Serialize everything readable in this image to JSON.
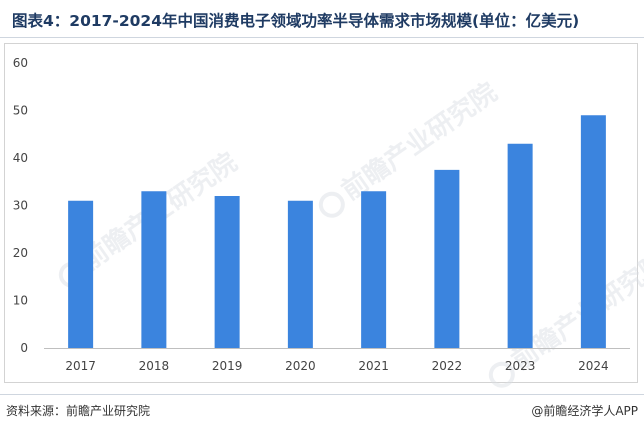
{
  "header": {
    "title": "图表4：2017-2024年中国消费电子领域功率半导体需求市场规模(单位：亿美元)"
  },
  "footer": {
    "source": "资料来源：前瞻产业研究院",
    "credit": "@前瞻经济学人APP"
  },
  "watermark": {
    "text": "前瞻产业研究院"
  },
  "colors": {
    "bar": "#3b84de",
    "axis": "#bfbfbf",
    "title": "#1f3b63"
  },
  "chart_data": {
    "type": "bar",
    "title": "图表4：2017-2024年中国消费电子领域功率半导体需求市场规模(单位：亿美元)",
    "categories": [
      "2017",
      "2018",
      "2019",
      "2020",
      "2021",
      "2022",
      "2023",
      "2024"
    ],
    "values": [
      31,
      33,
      32,
      31,
      33,
      37.5,
      43,
      49
    ],
    "ylim": [
      0,
      60
    ],
    "yticks": [
      0,
      10,
      20,
      30,
      40,
      50,
      60
    ],
    "xlabel": "",
    "ylabel": "",
    "grid": false,
    "legend": "none"
  }
}
